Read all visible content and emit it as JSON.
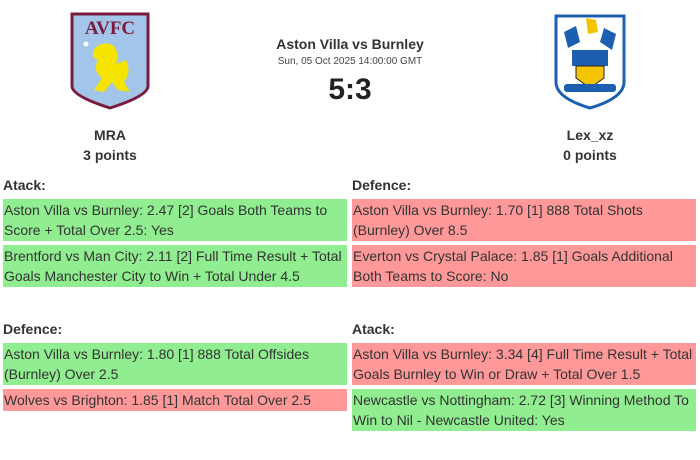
{
  "match": {
    "title": "Aston Villa vs Burnley",
    "date": "Sun, 05 Oct 2025 14:00:00 GMT",
    "score": "5:3"
  },
  "home": {
    "player": "MRA",
    "points": "3 points",
    "logo_text": "AVFC",
    "logo": "aston-villa-crest"
  },
  "away": {
    "player": "Lex_xz",
    "points": "0 points",
    "logo": "huddersfield-town-crest"
  },
  "colors": {
    "win": "#90ee90",
    "loss": "#ff9999"
  },
  "sections": [
    {
      "title": "Atack:",
      "bets": [
        {
          "text": "Aston Villa vs Burnley: 2.47 [2] Goals Both Teams to Score + Total Over 2.5: Yes",
          "status": "win"
        },
        {
          "text": "Brentford vs Man City: 2.11 [2] Full Time Result + Total Goals Manchester City to Win + Total Under 4.5",
          "status": "win"
        }
      ]
    },
    {
      "title": "Defence:",
      "bets": [
        {
          "text": "Aston Villa vs Burnley: 1.70 [1] 888 Total Shots (Burnley) Over 8.5",
          "status": "loss"
        },
        {
          "text": "Everton vs Crystal Palace: 1.85 [1] Goals Additional Both Teams to Score: No",
          "status": "loss"
        }
      ]
    },
    {
      "title": "Defence:",
      "bets": [
        {
          "text": "Aston Villa vs Burnley: 1.80 [1] 888 Total Offsides (Burnley) Over 2.5",
          "status": "win"
        },
        {
          "text": "Wolves vs Brighton: 1.85 [1] Match Total Over 2.5",
          "status": "loss"
        }
      ]
    },
    {
      "title": "Atack:",
      "bets": [
        {
          "text": "Aston Villa vs Burnley: 3.34 [4] Full Time Result + Total Goals Burnley to Win or Draw + Total Over 1.5",
          "status": "loss"
        },
        {
          "text": "Newcastle vs Nottingham: 2.72 [3] Winning Method To Win to Nil - Newcastle United: Yes",
          "status": "win"
        }
      ]
    }
  ]
}
